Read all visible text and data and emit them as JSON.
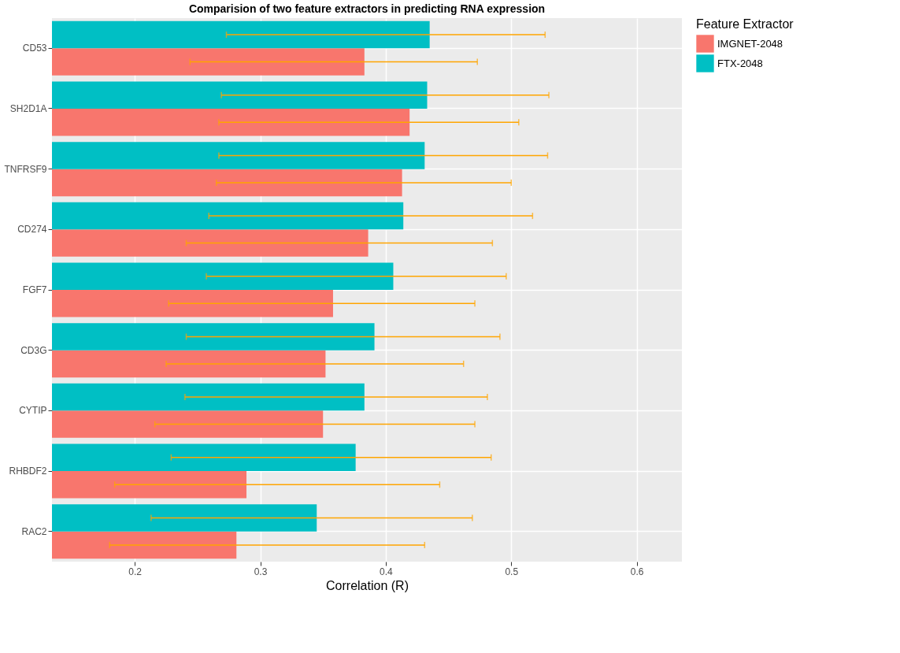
{
  "chart_data": {
    "type": "bar",
    "orientation": "horizontal",
    "title": "Comparision of two feature extractors in predicting RNA expression",
    "xlabel": "Correlation (R)",
    "legend_title": "Feature Extractor",
    "legend": "right",
    "grid": true,
    "categories": [
      "CD53",
      "SH2D1A",
      "TNFRSF9",
      "CD274",
      "FGF7",
      "CD3G",
      "CYTIP",
      "RHBDF2",
      "RAC2"
    ],
    "xlim": [
      0.134,
      0.636
    ],
    "xticks": [
      0.2,
      0.3,
      0.4,
      0.5,
      0.6
    ],
    "series": [
      {
        "name": "IMGNET-2048",
        "color": "#f8766d",
        "values": [
          0.383,
          0.419,
          0.413,
          0.386,
          0.358,
          0.352,
          0.35,
          0.289,
          0.281
        ],
        "errors": [
          [
            0.244,
            0.473
          ],
          [
            0.267,
            0.506
          ],
          [
            0.265,
            0.5
          ],
          [
            0.241,
            0.485
          ],
          [
            0.227,
            0.471
          ],
          [
            0.225,
            0.462
          ],
          [
            0.216,
            0.471
          ],
          [
            0.184,
            0.443
          ],
          [
            0.18,
            0.431
          ]
        ]
      },
      {
        "name": "FTX-2048",
        "color": "#00bfc4",
        "values": [
          0.435,
          0.433,
          0.431,
          0.414,
          0.406,
          0.391,
          0.383,
          0.376,
          0.345
        ],
        "errors": [
          [
            0.273,
            0.527
          ],
          [
            0.269,
            0.53
          ],
          [
            0.267,
            0.529
          ],
          [
            0.259,
            0.517
          ],
          [
            0.257,
            0.496
          ],
          [
            0.241,
            0.491
          ],
          [
            0.24,
            0.481
          ],
          [
            0.229,
            0.484
          ],
          [
            0.213,
            0.469
          ]
        ]
      }
    ]
  }
}
